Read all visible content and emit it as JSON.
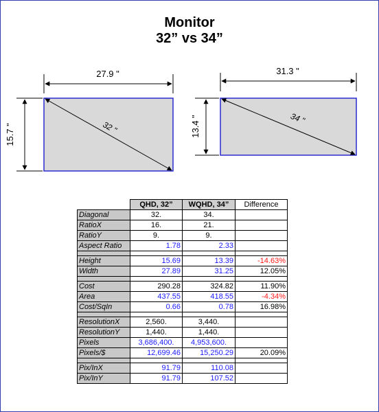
{
  "title_line1": "Monitor",
  "title_line2": "32” vs 34”",
  "diagram": {
    "left": {
      "width": "27.9 \"",
      "height": "15.7 \"",
      "diagonal": "32 \""
    },
    "right": {
      "width": "31.3 \"",
      "height": "13.4 \"",
      "diagonal": "34 \""
    }
  },
  "table": {
    "headers": [
      "",
      "QHD, 32”",
      "WQHD, 34”",
      "Difference"
    ],
    "rows": [
      {
        "label": "Diagonal",
        "a": "32.",
        "b": "34.",
        "diff": "",
        "a_style": "ctr",
        "b_style": "ctr",
        "diff_style": ""
      },
      {
        "label": "RatioX",
        "a": "16.",
        "b": "21.",
        "diff": "",
        "a_style": "ctr",
        "b_style": "ctr",
        "diff_style": ""
      },
      {
        "label": "RatioY",
        "a": "9.",
        "b": "9.",
        "diff": "",
        "a_style": "ctr",
        "b_style": "ctr",
        "diff_style": ""
      },
      {
        "label": "Aspect Ratio",
        "a": "1.78",
        "b": "2.33",
        "diff": "",
        "a_style": "blue",
        "b_style": "blue",
        "diff_style": ""
      },
      {
        "spacer": true
      },
      {
        "label": "Height",
        "a": "15.69",
        "b": "13.39",
        "diff": "-14.63%",
        "a_style": "blue",
        "b_style": "blue",
        "diff_style": "red"
      },
      {
        "label": "Width",
        "a": "27.89",
        "b": "31.25",
        "diff": "12.05%",
        "a_style": "blue",
        "b_style": "blue",
        "diff_style": ""
      },
      {
        "spacer": true
      },
      {
        "label": "Cost",
        "a": "290.28",
        "b": "324.82",
        "diff": "11.90%",
        "a_style": "",
        "b_style": "",
        "diff_style": ""
      },
      {
        "label": "Area",
        "a": "437.55",
        "b": "418.55",
        "diff": "-4.34%",
        "a_style": "blue",
        "b_style": "blue",
        "diff_style": "red"
      },
      {
        "label": "Cost/SqIn",
        "a": "0.66",
        "b": "0.78",
        "diff": "16.98%",
        "a_style": "blue",
        "b_style": "blue",
        "diff_style": ""
      },
      {
        "spacer": true
      },
      {
        "label": "ResolutionX",
        "a": "2,560.",
        "b": "3,440.",
        "diff": "",
        "a_style": "ctr",
        "b_style": "ctr",
        "diff_style": ""
      },
      {
        "label": "ResolutionY",
        "a": "1,440.",
        "b": "1,440.",
        "diff": "",
        "a_style": "ctr",
        "b_style": "ctr",
        "diff_style": ""
      },
      {
        "label": "Pixels",
        "a": "3,686,400.",
        "b": "4,953,600.",
        "diff": "",
        "a_style": "blue ctr",
        "b_style": "blue ctr",
        "diff_style": ""
      },
      {
        "label": "Pixels/$",
        "a": "12,699.46",
        "b": "15,250.29",
        "diff": "20.09%",
        "a_style": "blue",
        "b_style": "blue",
        "diff_style": ""
      },
      {
        "spacer": true
      },
      {
        "label": "Pix/InX",
        "a": "91.79",
        "b": "110.08",
        "diff": "",
        "a_style": "blue",
        "b_style": "blue",
        "diff_style": ""
      },
      {
        "label": "Pix/InY",
        "a": "91.79",
        "b": "107.52",
        "diff": "",
        "a_style": "blue",
        "b_style": "blue",
        "diff_style": ""
      }
    ]
  },
  "colors": {
    "frame": "#2f3fb0",
    "blue_value": "#1a1aff",
    "red_value": "#ff1a1a",
    "screen_fill": "#d9d9d9",
    "screen_border": "#2b2bd0"
  }
}
